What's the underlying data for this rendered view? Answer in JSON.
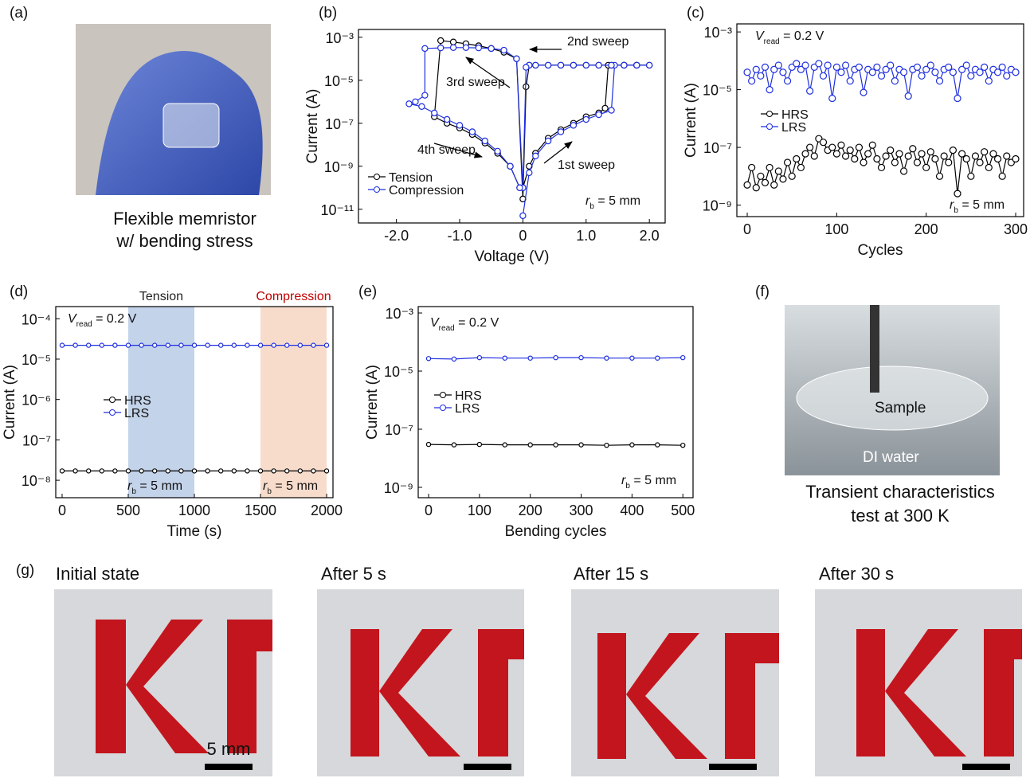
{
  "panel_labels": [
    "(a)",
    "(b)",
    "(c)",
    "(d)",
    "(e)",
    "(f)",
    "(g)"
  ],
  "photo_a": {
    "caption": [
      "Flexible memristor",
      "w/ bending stress"
    ]
  },
  "photo_f": {
    "labels": [
      "Sample",
      "DI water"
    ],
    "caption": [
      "Transient characteristics",
      "test at 300 K"
    ]
  },
  "photo_g": {
    "titles": [
      "Initial state",
      "After 5 s",
      "After 15 s",
      "After 30 s"
    ],
    "scale_bar": "5 mm"
  },
  "chart_data": [
    {
      "type": "line",
      "xlabel": "Voltage (V)",
      "ylabel": "Current (A)",
      "log_y": true,
      "xlim": [
        -2.6,
        2.25
      ],
      "ylim": [
        2.3e-12,
        0.0023
      ],
      "xticks": [
        {
          "value": -2,
          "label": "-2.0"
        },
        {
          "value": -1,
          "label": "-1.0"
        },
        0,
        {
          "value": 1,
          "label": "1.0"
        },
        {
          "value": 2,
          "label": "2.0"
        }
      ],
      "yticks": [
        {
          "value": 0.001,
          "label": "10⁻³"
        },
        {
          "value": 1e-05,
          "label": "10⁻⁵"
        },
        {
          "value": 1e-07,
          "label": "10⁻⁷"
        },
        {
          "value": 1e-09,
          "label": "10⁻⁹"
        },
        {
          "value": 1e-11,
          "label": "10⁻¹¹"
        }
      ],
      "legend": "lower left",
      "series": [
        {
          "name": "Tension",
          "color": "#000000",
          "x": [
            0,
            0.1,
            0.2,
            0.4,
            0.6,
            0.8,
            1.0,
            1.2,
            1.3,
            1.35,
            1.6,
            1.8,
            2.0,
            1.8,
            1.6,
            1.4,
            1.2,
            1.0,
            0.8,
            0.6,
            0.4,
            0.2,
            0.1,
            0.05,
            0,
            -0.1,
            -0.3,
            -0.5,
            -0.7,
            -0.9,
            -1.1,
            -1.3,
            -1.4,
            -1.2,
            -1.0,
            -0.8,
            -0.6,
            -0.4,
            -0.2,
            -0.05
          ],
          "values": [
            1e-10,
            1e-09,
            4e-09,
            2e-08,
            5e-08,
            1e-07,
            2e-07,
            3e-07,
            5e-07,
            5e-05,
            5e-05,
            5e-05,
            5e-05,
            5e-05,
            5e-05,
            5e-05,
            5e-05,
            5e-05,
            5e-05,
            5e-05,
            5e-05,
            5e-05,
            5e-05,
            5e-06,
            3e-11,
            0.0001,
            0.0002,
            0.0003,
            0.0004,
            0.0005,
            0.0006,
            0.0007,
            2e-07,
            1e-07,
            6e-08,
            3e-08,
            1.2e-08,
            4e-09,
            1e-09,
            1e-10
          ]
        },
        {
          "name": "Compression",
          "color": "#1f2fe0",
          "x": [
            0,
            0.1,
            0.2,
            0.4,
            0.6,
            0.8,
            1.0,
            1.2,
            1.4,
            1.45,
            1.6,
            1.8,
            2.0,
            1.8,
            1.6,
            1.4,
            1.2,
            1.0,
            0.8,
            0.6,
            0.4,
            0.2,
            0.1,
            0.05,
            0,
            -0.1,
            -0.3,
            -0.5,
            -0.7,
            -0.9,
            -1.1,
            -1.3,
            -1.55,
            -1.55,
            -1.7,
            -1.8,
            -1.6,
            -1.4,
            -1.2,
            -1.0,
            -0.8,
            -0.6,
            -0.4,
            -0.2,
            -0.05
          ],
          "values": [
            5e-12,
            5e-10,
            3e-09,
            1.5e-08,
            4e-08,
            8e-08,
            1.5e-07,
            2.5e-07,
            4e-07,
            5e-05,
            5e-05,
            5e-05,
            5e-05,
            5e-05,
            5e-05,
            5e-05,
            5e-05,
            5e-05,
            5e-05,
            5e-05,
            5e-05,
            5e-05,
            5e-05,
            4e-05,
            1e-10,
            0.0001,
            0.00025,
            0.0003,
            0.00032,
            0.00033,
            0.00033,
            0.00032,
            0.0003,
            2e-06,
            1e-06,
            8e-07,
            6e-07,
            3e-07,
            1.5e-07,
            8e-08,
            4e-08,
            1.5e-08,
            5e-09,
            1e-09,
            1e-10
          ]
        }
      ],
      "annotations": [
        "2nd sweep",
        "3rd sweep",
        "4th sweep",
        "1st sweep"
      ],
      "notes": [
        {
          "symbol": "r",
          "subscript": "b",
          "rest": " = 5 mm"
        }
      ]
    },
    {
      "type": "line",
      "xlabel": "Cycles",
      "ylabel": "Current (A)",
      "log_y": true,
      "xlim": [
        -11.6,
        308.9
      ],
      "ylim": [
        4e-10,
        0.0019
      ],
      "xticks": [
        0,
        100,
        200,
        300
      ],
      "yticks": [
        {
          "value": 0.001,
          "label": "10⁻³"
        },
        {
          "value": 1e-05,
          "label": "10⁻⁵"
        },
        {
          "value": 1e-07,
          "label": "10⁻⁷"
        },
        {
          "value": 1e-09,
          "label": "10⁻⁹"
        }
      ],
      "legend": "middle left",
      "series": [
        {
          "name": "HRS",
          "color": "#000000",
          "x": [
            0,
            5,
            10,
            15,
            20,
            25,
            30,
            35,
            40,
            45,
            50,
            55,
            60,
            65,
            70,
            75,
            80,
            85,
            90,
            95,
            100,
            105,
            110,
            115,
            120,
            125,
            130,
            135,
            140,
            145,
            150,
            155,
            160,
            165,
            170,
            175,
            180,
            185,
            190,
            195,
            200,
            205,
            210,
            215,
            220,
            225,
            230,
            235,
            240,
            245,
            250,
            255,
            260,
            265,
            270,
            275,
            280,
            285,
            290,
            295,
            300
          ],
          "values": [
            5e-09,
            2e-08,
            4e-09,
            1e-08,
            6e-09,
            2e-08,
            5e-09,
            1.5e-08,
            8e-09,
            3e-08,
            1e-08,
            4e-08,
            2e-08,
            6e-08,
            1e-07,
            5e-08,
            2e-07,
            1.5e-07,
            8e-08,
            1e-07,
            6e-08,
            1.2e-07,
            5e-08,
            8e-08,
            4e-08,
            1e-07,
            3e-08,
            6e-08,
            1.2e-07,
            4e-08,
            2e-08,
            5e-08,
            8e-08,
            3e-08,
            6e-08,
            1.5e-08,
            5e-08,
            9e-08,
            3e-08,
            6e-08,
            2e-08,
            7e-08,
            4e-08,
            1e-08,
            5e-08,
            3e-08,
            8e-08,
            2.5e-09,
            6e-08,
            4e-08,
            1e-08,
            5e-08,
            3e-08,
            7e-08,
            2e-08,
            6e-08,
            4e-08,
            1e-08,
            5e-08,
            3e-08,
            4e-08
          ]
        },
        {
          "name": "LRS",
          "color": "#1f2fe0",
          "x": [
            0,
            5,
            10,
            15,
            20,
            25,
            30,
            35,
            40,
            45,
            50,
            55,
            60,
            65,
            70,
            75,
            80,
            85,
            90,
            95,
            100,
            105,
            110,
            115,
            120,
            125,
            130,
            135,
            140,
            145,
            150,
            155,
            160,
            165,
            170,
            175,
            180,
            185,
            190,
            195,
            200,
            205,
            210,
            215,
            220,
            225,
            230,
            235,
            240,
            245,
            250,
            255,
            260,
            265,
            270,
            275,
            280,
            285,
            290,
            295,
            300
          ],
          "values": [
            4e-05,
            2e-05,
            5e-05,
            3e-05,
            6e-05,
            1e-05,
            5e-05,
            7e-05,
            4e-05,
            2e-05,
            6e-05,
            8e-05,
            5e-05,
            7e-05,
            9e-06,
            6e-05,
            8e-05,
            3e-05,
            7e-05,
            5e-06,
            6e-05,
            4e-05,
            7e-05,
            2e-05,
            5e-05,
            6e-05,
            8e-06,
            5e-05,
            4e-05,
            6e-05,
            3e-05,
            5e-05,
            7e-05,
            2e-05,
            5e-05,
            4e-05,
            6e-06,
            5e-05,
            6e-05,
            3e-05,
            5e-05,
            7e-05,
            4e-05,
            2e-05,
            5e-05,
            6e-05,
            4e-05,
            5e-06,
            5e-05,
            7e-05,
            3e-05,
            5e-05,
            4e-05,
            6e-05,
            2e-05,
            5e-05,
            4e-05,
            6e-05,
            3e-05,
            5e-05,
            4e-05
          ]
        }
      ],
      "notes": [
        {
          "symbol": "V",
          "subscript": "read",
          "rest": " = 0.2 V"
        },
        {
          "symbol": "r",
          "subscript": "b",
          "rest": " = 5 mm"
        }
      ]
    },
    {
      "type": "line",
      "xlabel": "Time (s)",
      "ylabel": "Current (A)",
      "log_y": true,
      "xlim": [
        -48,
        2048
      ],
      "ylim": [
        3.7e-09,
        0.0002
      ],
      "xticks": [
        0,
        500,
        1000,
        1500,
        2000
      ],
      "yticks": [
        {
          "value": 0.0001,
          "label": "10⁻⁴"
        },
        {
          "value": 1e-05,
          "label": "10⁻⁵"
        },
        {
          "value": 1e-06,
          "label": "10⁻⁶"
        },
        {
          "value": 1e-07,
          "label": "10⁻⁷"
        },
        {
          "value": 1e-08,
          "label": "10⁻⁸"
        }
      ],
      "legend": "middle left",
      "regions": [
        {
          "label": "Tension",
          "range": [
            500,
            1000
          ],
          "fill": "#c3d3ea",
          "label_color": "#222222"
        },
        {
          "label": "Compression",
          "range": [
            1500,
            2000
          ],
          "fill": "#f8dccb",
          "label_color": "#c00000"
        }
      ],
      "series": [
        {
          "name": "HRS",
          "color": "#000000",
          "x": [
            0,
            100,
            200,
            300,
            400,
            500,
            600,
            700,
            800,
            900,
            1000,
            1100,
            1200,
            1300,
            1400,
            1500,
            1600,
            1700,
            1800,
            1900,
            2000
          ],
          "values": [
            1.7e-08,
            1.7e-08,
            1.7e-08,
            1.7e-08,
            1.7e-08,
            1.7e-08,
            1.7e-08,
            1.7e-08,
            1.7e-08,
            1.7e-08,
            1.7e-08,
            1.7e-08,
            1.7e-08,
            1.7e-08,
            1.7e-08,
            1.7e-08,
            1.7e-08,
            1.7e-08,
            1.7e-08,
            1.7e-08,
            1.7e-08
          ]
        },
        {
          "name": "LRS",
          "color": "#1f2fe0",
          "x": [
            0,
            100,
            200,
            300,
            400,
            500,
            600,
            700,
            800,
            900,
            1000,
            1100,
            1200,
            1300,
            1400,
            1500,
            1600,
            1700,
            1800,
            1900,
            2000
          ],
          "values": [
            2.2e-05,
            2.2e-05,
            2.2e-05,
            2.2e-05,
            2.2e-05,
            2.2e-05,
            2.2e-05,
            2.2e-05,
            2.2e-05,
            2.2e-05,
            2.2e-05,
            2.2e-05,
            2.2e-05,
            2.2e-05,
            2.2e-05,
            2.2e-05,
            2.2e-05,
            2.2e-05,
            2.2e-05,
            2.2e-05,
            2.2e-05
          ]
        }
      ],
      "notes": [
        {
          "symbol": "V",
          "subscript": "read",
          "rest": " = 0.2 V"
        },
        {
          "symbol": "r",
          "subscript": "b",
          "rest": " = 5 mm"
        },
        {
          "symbol": "r",
          "subscript": "b",
          "rest": " = 5 mm"
        }
      ]
    },
    {
      "type": "line",
      "xlabel": "Bending cycles",
      "ylabel": "Current (A)",
      "log_y": true,
      "xlim": [
        -20.4,
        520
      ],
      "ylim": [
        4.4e-10,
        0.00166
      ],
      "xticks": [
        0,
        100,
        200,
        300,
        400,
        500
      ],
      "yticks": [
        {
          "value": 0.001,
          "label": "10⁻³"
        },
        {
          "value": 1e-05,
          "label": "10⁻⁵"
        },
        {
          "value": 1e-07,
          "label": "10⁻⁷"
        },
        {
          "value": 1e-09,
          "label": "10⁻⁹"
        }
      ],
      "legend": "middle left",
      "series": [
        {
          "name": "HRS",
          "color": "#000000",
          "x": [
            0,
            50,
            100,
            150,
            200,
            250,
            300,
            350,
            400,
            450,
            500
          ],
          "values": [
            3e-08,
            2.9e-08,
            3e-08,
            2.9e-08,
            2.9e-08,
            2.9e-08,
            2.9e-08,
            2.8e-08,
            2.9e-08,
            2.9e-08,
            2.8e-08
          ]
        },
        {
          "name": "LRS",
          "color": "#1f2fe0",
          "x": [
            0,
            50,
            100,
            150,
            200,
            250,
            300,
            350,
            400,
            450,
            500
          ],
          "values": [
            2.7e-05,
            2.6e-05,
            2.9e-05,
            2.8e-05,
            2.8e-05,
            2.9e-05,
            2.9e-05,
            2.8e-05,
            2.8e-05,
            2.8e-05,
            2.9e-05
          ]
        }
      ],
      "notes": [
        {
          "symbol": "V",
          "subscript": "read",
          "rest": " = 0.2 V"
        },
        {
          "symbol": "r",
          "subscript": "b",
          "rest": " = 5 mm"
        }
      ]
    }
  ]
}
